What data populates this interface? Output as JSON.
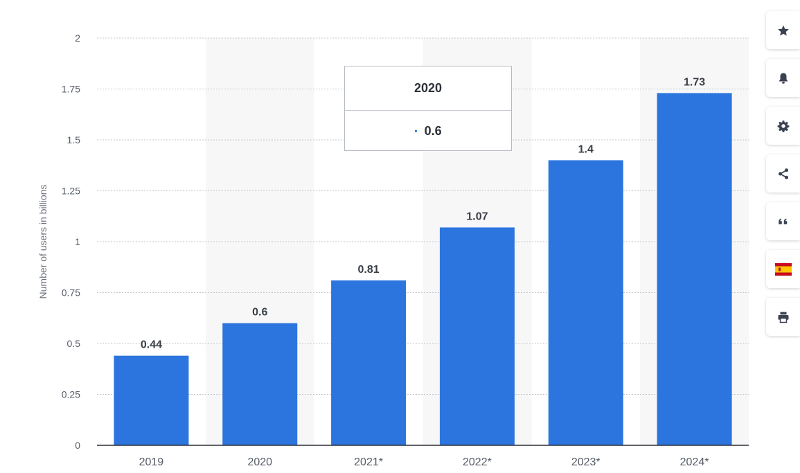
{
  "chart_data": {
    "type": "bar",
    "categories": [
      "2019",
      "2020",
      "2021*",
      "2022*",
      "2023*",
      "2024*"
    ],
    "values": [
      0.44,
      0.6,
      0.81,
      1.07,
      1.4,
      1.73
    ],
    "value_labels": [
      "0.44",
      "0.6",
      "0.81",
      "1.07",
      "1.4",
      "1.73"
    ],
    "ylabel": "Number of users in billions",
    "xlabel": "",
    "ylim": [
      0,
      2
    ],
    "yticks": [
      "0",
      "0.25",
      "0.5",
      "0.75",
      "1",
      "1.25",
      "1.5",
      "1.75",
      "2"
    ],
    "grid": true,
    "bar_color": "#2c75de",
    "band_color": "#f7f7f8"
  },
  "tooltip": {
    "title": "2020",
    "value": "0.6",
    "bullet": "•"
  },
  "toolbar": {
    "buttons": [
      {
        "name": "favorite-button",
        "icon": "star-icon"
      },
      {
        "name": "notification-button",
        "icon": "bell-icon"
      },
      {
        "name": "settings-button",
        "icon": "gear-icon"
      },
      {
        "name": "share-button",
        "icon": "share-icon"
      },
      {
        "name": "citation-button",
        "icon": "quote-icon"
      },
      {
        "name": "language-button",
        "icon": "spain-flag-icon"
      },
      {
        "name": "print-button",
        "icon": "printer-icon"
      }
    ]
  }
}
